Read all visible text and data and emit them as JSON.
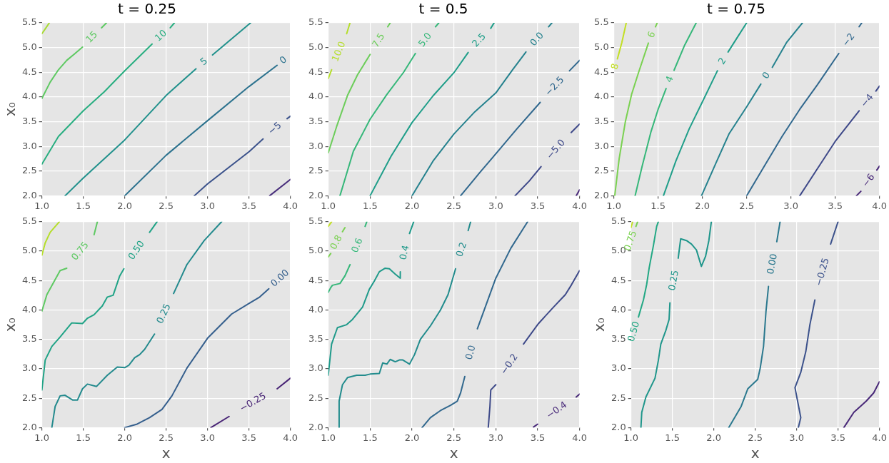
{
  "chart_data": [
    {
      "type": "line",
      "title": "t = 0.25",
      "ylabel": "x₀",
      "grid": true,
      "marker": "none",
      "xlim": [
        1,
        4
      ],
      "ylim": [
        2,
        5.5
      ],
      "xticks": [
        {
          "value": 1,
          "label": "1.0"
        },
        {
          "value": 1.5,
          "label": "1.5"
        },
        {
          "value": 2,
          "label": "2.0"
        },
        {
          "value": 2.5,
          "label": "2.5"
        },
        {
          "value": 3,
          "label": "3.0"
        },
        {
          "value": 3.5,
          "label": "3.5"
        },
        {
          "value": 4,
          "label": "4.0"
        }
      ],
      "yticks": [
        {
          "value": 2,
          "label": "2.0"
        },
        {
          "value": 2.5,
          "label": "2.5"
        },
        {
          "value": 3,
          "label": "3.0"
        },
        {
          "value": 3.5,
          "label": "3.5"
        },
        {
          "value": 4,
          "label": "4.0"
        },
        {
          "value": 4.5,
          "label": "4.5"
        },
        {
          "value": 5,
          "label": "5.0"
        },
        {
          "value": 5.5,
          "label": "5.5"
        }
      ],
      "series": [
        {
          "color": "#a8db34",
          "x": [
            1.0,
            1.05,
            1.09
          ],
          "values": [
            5.28,
            5.4,
            5.5
          ]
        },
        {
          "name": "15",
          "color": "#5ec962",
          "x": [
            1.0,
            1.1,
            1.2,
            1.3,
            1.4,
            1.49,
            1.6,
            1.72,
            1.78
          ],
          "values": [
            3.97,
            4.3,
            4.55,
            4.74,
            4.88,
            5.01,
            null,
            5.4,
            5.5
          ]
        },
        {
          "name": "10",
          "color": "#28ae80",
          "x": [
            1.0,
            1.2,
            1.5,
            1.75,
            2.0,
            2.33,
            2.45,
            2.55,
            2.6
          ],
          "values": [
            2.64,
            3.2,
            3.72,
            4.1,
            4.53,
            5.07,
            null,
            5.4,
            5.5
          ]
        },
        {
          "name": "5",
          "color": "#21918c",
          "x": [
            1.28,
            1.5,
            2.0,
            2.5,
            2.86,
            2.96,
            3.06,
            3.52
          ],
          "values": [
            2.0,
            2.36,
            3.13,
            4.03,
            4.57,
            null,
            4.85,
            5.5
          ]
        },
        {
          "name": "0",
          "color": "#2c728e",
          "x": [
            2.0,
            2.5,
            3.0,
            3.5,
            3.84
          ],
          "values": [
            2.0,
            2.82,
            3.52,
            4.21,
            4.64
          ]
        },
        {
          "name": "−5",
          "color": "#3b528b",
          "x": [
            2.84,
            3.0,
            3.5,
            3.67,
            3.82,
            3.96,
            4.0
          ],
          "values": [
            2.0,
            2.24,
            2.89,
            3.15,
            null,
            3.56,
            3.61
          ]
        },
        {
          "color": "#472d7b",
          "x": [
            3.75,
            4.0
          ],
          "values": [
            2.0,
            2.33
          ]
        }
      ]
    },
    {
      "type": "line",
      "title": "t = 0.5",
      "grid": true,
      "marker": "none",
      "xlim": [
        1,
        4
      ],
      "ylim": [
        2,
        5.5
      ],
      "xticks": [
        {
          "value": 1,
          "label": "1.0"
        },
        {
          "value": 1.5,
          "label": "1.5"
        },
        {
          "value": 2,
          "label": "2.0"
        },
        {
          "value": 2.5,
          "label": "2.5"
        },
        {
          "value": 3,
          "label": "3.0"
        },
        {
          "value": 3.5,
          "label": "3.5"
        },
        {
          "value": 4,
          "label": "4.0"
        }
      ],
      "yticks": [
        {
          "value": 2,
          "label": "2.0"
        },
        {
          "value": 2.5,
          "label": "2.5"
        },
        {
          "value": 3,
          "label": "3.0"
        },
        {
          "value": 3.5,
          "label": "3.5"
        },
        {
          "value": 4,
          "label": "4.0"
        },
        {
          "value": 4.5,
          "label": "4.5"
        },
        {
          "value": 5,
          "label": "5.0"
        },
        {
          "value": 5.5,
          "label": "5.5"
        }
      ],
      "series": [
        {
          "name": "10.0",
          "color": "#b5de2b",
          "x": [
            1.0,
            1.04,
            1.12,
            1.22,
            1.26
          ],
          "values": [
            4.37,
            4.55,
            null,
            5.28,
            5.5
          ]
        },
        {
          "name": "7.5",
          "color": "#6ccd5a",
          "x": [
            1.0,
            1.1,
            1.23,
            1.35,
            1.5,
            1.6,
            1.71,
            1.74
          ],
          "values": [
            2.87,
            3.4,
            4.03,
            4.45,
            4.86,
            null,
            5.42,
            5.5
          ]
        },
        {
          "name": "5.0",
          "color": "#35b779",
          "x": [
            1.14,
            1.3,
            1.5,
            1.7,
            1.9,
            2.04,
            2.12,
            2.28,
            2.32
          ],
          "values": [
            2.0,
            2.9,
            3.55,
            4.05,
            4.5,
            4.88,
            null,
            5.42,
            5.5
          ]
        },
        {
          "name": "2.5",
          "color": "#1f9e89",
          "x": [
            1.5,
            1.75,
            2.0,
            2.25,
            2.5,
            2.67,
            2.8,
            2.94,
            2.98
          ],
          "values": [
            2.0,
            2.8,
            3.48,
            4.02,
            4.49,
            4.9,
            null,
            5.39,
            5.5
          ]
        },
        {
          "name": "0.0",
          "color": "#26828e",
          "x": [
            2.0,
            2.25,
            2.5,
            2.75,
            3.0,
            3.2,
            3.36,
            3.5,
            3.63,
            3.67
          ],
          "values": [
            2.0,
            2.7,
            3.25,
            3.7,
            4.08,
            4.55,
            4.91,
            null,
            5.42,
            5.5
          ]
        },
        {
          "name": "−2.5",
          "color": "#31688e",
          "x": [
            2.58,
            2.8,
            3.0,
            3.25,
            3.53,
            3.72,
            3.88,
            4.0
          ],
          "values": [
            2.0,
            2.45,
            2.85,
            3.35,
            3.89,
            null,
            4.53,
            4.74
          ]
        },
        {
          "name": "−5.0",
          "color": "#3e4989",
          "x": [
            3.23,
            3.4,
            3.54,
            3.72,
            3.9,
            4.0
          ],
          "values": [
            2.0,
            2.3,
            2.59,
            null,
            3.28,
            3.45
          ]
        },
        {
          "color": "#482878",
          "x": [
            3.96,
            4.0
          ],
          "values": [
            2.0,
            2.12
          ]
        }
      ]
    },
    {
      "type": "line",
      "title": "t = 0.75",
      "grid": true,
      "marker": "none",
      "xlim": [
        1,
        4
      ],
      "ylim": [
        2,
        5.5
      ],
      "xticks": [
        {
          "value": 1,
          "label": "1.0"
        },
        {
          "value": 1.5,
          "label": "1.5"
        },
        {
          "value": 2,
          "label": "2.0"
        },
        {
          "value": 2.5,
          "label": "2.5"
        },
        {
          "value": 3,
          "label": "3.0"
        },
        {
          "value": 3.5,
          "label": "3.5"
        },
        {
          "value": 4,
          "label": "4.0"
        }
      ],
      "yticks": [
        {
          "value": 2,
          "label": "2.0"
        },
        {
          "value": 2.5,
          "label": "2.5"
        },
        {
          "value": 3,
          "label": "3.0"
        },
        {
          "value": 3.5,
          "label": "3.5"
        },
        {
          "value": 4,
          "label": "4.0"
        },
        {
          "value": 4.5,
          "label": "4.5"
        },
        {
          "value": 5,
          "label": "5.0"
        },
        {
          "value": 5.5,
          "label": "5.5"
        }
      ],
      "series": [
        {
          "name": "8",
          "color": "#c2df23",
          "x": [
            1.14,
            1.09,
            1.04
          ],
          "values": [
            5.5,
            5.1,
            4.77
          ]
        },
        {
          "name": "6",
          "color": "#7ad151",
          "x": [
            1.01,
            1.06,
            1.13,
            1.2,
            1.28,
            1.39,
            1.43,
            1.47,
            1.49
          ],
          "values": [
            2.0,
            2.75,
            3.5,
            4.05,
            4.5,
            5.09,
            null,
            5.42,
            5.5
          ]
        },
        {
          "name": "4",
          "color": "#35b779",
          "x": [
            1.24,
            1.32,
            1.42,
            1.5,
            1.59,
            1.63,
            1.68,
            1.8,
            1.93
          ],
          "values": [
            2.0,
            2.6,
            3.3,
            3.75,
            4.17,
            null,
            4.54,
            5.05,
            5.5
          ]
        },
        {
          "name": "2",
          "color": "#1f9e89",
          "x": [
            1.56,
            1.7,
            1.85,
            2.0,
            2.17,
            2.22,
            2.29,
            2.4,
            2.5
          ],
          "values": [
            2.0,
            2.7,
            3.35,
            3.9,
            4.53,
            null,
            4.91,
            5.22,
            5.5
          ]
        },
        {
          "name": "0",
          "color": "#26828e",
          "x": [
            1.99,
            2.15,
            2.3,
            2.5,
            2.66,
            2.72,
            2.79,
            2.95,
            3.13
          ],
          "values": [
            2.0,
            2.65,
            3.25,
            3.8,
            4.26,
            null,
            4.6,
            5.1,
            5.5
          ]
        },
        {
          "name": "−2",
          "color": "#31688e",
          "x": [
            2.5,
            2.7,
            2.9,
            3.1,
            3.3,
            3.54,
            3.66,
            3.77,
            3.8
          ],
          "values": [
            2.0,
            2.6,
            3.2,
            3.75,
            4.25,
            4.88,
            null,
            5.42,
            5.5
          ]
        },
        {
          "name": "−4",
          "color": "#3e4989",
          "x": [
            3.1,
            3.3,
            3.5,
            3.77,
            3.88,
            3.96,
            4.0
          ],
          "values": [
            2.0,
            2.55,
            3.1,
            3.72,
            null,
            4.12,
            4.22
          ]
        },
        {
          "name": "−6",
          "color": "#482878",
          "x": [
            3.74,
            3.79,
            3.89,
            3.97,
            4.0
          ],
          "values": [
            2.0,
            2.09,
            null,
            2.52,
            2.6
          ]
        }
      ]
    },
    {
      "type": "line",
      "xlabel": "x",
      "ylabel": "x₀",
      "grid": true,
      "marker": "none",
      "xlim": [
        1,
        4
      ],
      "ylim": [
        2,
        5.5
      ],
      "xticks": [
        {
          "value": 1,
          "label": "1.0"
        },
        {
          "value": 1.5,
          "label": "1.5"
        },
        {
          "value": 2,
          "label": "2.0"
        },
        {
          "value": 2.5,
          "label": "2.5"
        },
        {
          "value": 3,
          "label": "3.0"
        },
        {
          "value": 3.5,
          "label": "3.5"
        },
        {
          "value": 4,
          "label": "4.0"
        }
      ],
      "yticks": [
        {
          "value": 2,
          "label": "2.0"
        },
        {
          "value": 2.5,
          "label": "2.5"
        },
        {
          "value": 3,
          "label": "3.0"
        },
        {
          "value": 3.5,
          "label": "3.5"
        },
        {
          "value": 4,
          "label": "4.0"
        },
        {
          "value": 4.5,
          "label": "4.5"
        },
        {
          "value": 5,
          "label": "5.0"
        },
        {
          "value": 5.5,
          "label": "5.5"
        }
      ],
      "series": [
        {
          "color": "#b5de2b",
          "x": [
            1.0,
            1.04,
            1.1,
            1.21
          ],
          "values": [
            4.93,
            5.14,
            5.32,
            5.5
          ]
        },
        {
          "name": "0.75",
          "color": "#5ec962",
          "x": [
            1.0,
            1.06,
            1.15,
            1.22,
            1.3,
            1.45,
            1.63,
            1.67
          ],
          "values": [
            3.98,
            4.26,
            4.49,
            4.67,
            4.71,
            null,
            5.28,
            5.5
          ]
        },
        {
          "name": "0.50",
          "color": "#20a386",
          "x": [
            1.0,
            1.04,
            1.12,
            1.22,
            1.36,
            1.49,
            1.55,
            1.63,
            1.73,
            1.79,
            1.86,
            1.94,
            1.99,
            2.14,
            2.3,
            2.39
          ],
          "values": [
            2.64,
            3.15,
            3.38,
            3.54,
            3.78,
            3.77,
            3.86,
            3.92,
            4.07,
            4.22,
            4.25,
            4.58,
            4.7,
            null,
            5.32,
            5.5
          ]
        },
        {
          "name": "0.25",
          "color": "#238a8d",
          "x": [
            1.12,
            1.16,
            1.22,
            1.28,
            1.37,
            1.43,
            1.49,
            1.55,
            1.66,
            1.79,
            1.91,
            2.0,
            2.05,
            2.12,
            2.18,
            2.24,
            2.36,
            2.46,
            2.59,
            2.75,
            2.96,
            3.17
          ],
          "values": [
            2.0,
            2.36,
            2.54,
            2.55,
            2.47,
            2.47,
            2.66,
            2.74,
            2.7,
            2.89,
            3.03,
            3.02,
            3.06,
            3.19,
            3.24,
            3.33,
            3.59,
            null,
            4.28,
            4.77,
            5.18,
            5.5
          ]
        },
        {
          "name": "0.00",
          "color": "#355f8d",
          "x": [
            2.0,
            2.15,
            2.3,
            2.45,
            2.57,
            2.75,
            3.0,
            3.29,
            3.5,
            3.63,
            3.74
          ],
          "values": [
            2.0,
            2.06,
            2.17,
            2.31,
            2.54,
            3.01,
            3.52,
            3.93,
            4.11,
            4.22,
            4.36
          ]
        },
        {
          "name": "−0.25",
          "color": "#482475",
          "x": [
            3.04,
            3.26,
            3.59,
            3.84,
            4.0
          ],
          "values": [
            2.0,
            2.19,
            null,
            2.66,
            2.84
          ]
        }
      ]
    },
    {
      "type": "line",
      "xlabel": "x",
      "grid": true,
      "marker": "none",
      "xlim": [
        1,
        4
      ],
      "ylim": [
        2,
        5.5
      ],
      "xticks": [
        {
          "value": 1,
          "label": "1.0"
        },
        {
          "value": 1.5,
          "label": "1.5"
        },
        {
          "value": 2,
          "label": "2.0"
        },
        {
          "value": 2.5,
          "label": "2.5"
        },
        {
          "value": 3,
          "label": "3.0"
        },
        {
          "value": 3.5,
          "label": "3.5"
        },
        {
          "value": 4,
          "label": "4.0"
        }
      ],
      "yticks": [
        {
          "value": 2,
          "label": "2.0"
        },
        {
          "value": 2.5,
          "label": "2.5"
        },
        {
          "value": 3,
          "label": "3.0"
        },
        {
          "value": 3.5,
          "label": "3.5"
        },
        {
          "value": 4,
          "label": "4.0"
        },
        {
          "value": 4.5,
          "label": "4.5"
        },
        {
          "value": 5,
          "label": "5.0"
        },
        {
          "value": 5.5,
          "label": "5.5"
        }
      ],
      "series": [
        {
          "color": "#c2df23",
          "x": [
            1.0,
            1.04
          ],
          "values": [
            5.42,
            5.5
          ]
        },
        {
          "name": "0.8",
          "color": "#7ad151",
          "x": [
            1.0,
            1.03,
            1.1,
            1.17,
            1.2
          ],
          "values": [
            4.9,
            4.96,
            null,
            5.33,
            5.4
          ]
        },
        {
          "name": "0.6",
          "color": "#35b779",
          "x": [
            1.0,
            1.03,
            1.05,
            1.14,
            1.2,
            1.26,
            1.35,
            1.44,
            1.46
          ],
          "values": [
            4.3,
            4.38,
            4.42,
            4.45,
            4.58,
            4.77,
            null,
            5.42,
            5.5
          ]
        },
        {
          "name": "0.4",
          "color": "#1f9a8a",
          "x": [
            1.0,
            1.04,
            1.11,
            1.22,
            1.29,
            1.41,
            1.49,
            1.55,
            1.61,
            1.68,
            1.73,
            1.8,
            1.86,
            1.86,
            1.9,
            1.97,
            2.02
          ],
          "values": [
            2.89,
            3.42,
            3.7,
            3.75,
            3.84,
            4.05,
            4.35,
            4.49,
            4.65,
            4.71,
            4.7,
            4.61,
            4.54,
            4.65,
            null,
            5.3,
            5.5
          ]
        },
        {
          "name": "0.2",
          "color": "#228c8d",
          "x": [
            1.13,
            1.13,
            1.17,
            1.23,
            1.34,
            1.44,
            1.5,
            1.61,
            1.65,
            1.7,
            1.74,
            1.8,
            1.85,
            1.89,
            1.97,
            2.03,
            2.1,
            2.22,
            2.34,
            2.43,
            2.52,
            2.6,
            2.67,
            2.7
          ],
          "values": [
            2.0,
            2.45,
            2.73,
            2.85,
            2.89,
            2.89,
            2.91,
            2.92,
            3.1,
            3.08,
            3.16,
            3.12,
            3.15,
            3.15,
            3.08,
            3.24,
            3.5,
            3.73,
            4.0,
            4.26,
            4.7,
            null,
            5.35,
            5.5
          ]
        },
        {
          "name": "0.0",
          "color": "#31688e",
          "x": [
            2.12,
            2.22,
            2.34,
            2.46,
            2.54,
            2.58,
            2.63,
            2.7,
            2.78,
            2.88,
            3.0,
            3.18,
            3.38
          ],
          "values": [
            2.0,
            2.17,
            2.29,
            2.38,
            2.45,
            2.59,
            2.87,
            null,
            3.68,
            4.07,
            4.54,
            5.05,
            5.5
          ]
        },
        {
          "name": "−0.2",
          "color": "#3e4a89",
          "x": [
            2.91,
            2.93,
            2.94,
            3.0,
            3.18,
            3.33,
            3.51,
            3.69,
            3.83,
            3.9,
            4.0
          ],
          "values": [
            2.0,
            2.36,
            2.64,
            2.73,
            null,
            3.42,
            3.77,
            4.05,
            4.26,
            4.42,
            4.67
          ]
        },
        {
          "name": "−0.4",
          "color": "#482979",
          "x": [
            3.45,
            3.5,
            3.74,
            3.96,
            4.0
          ],
          "values": [
            2.01,
            2.06,
            null,
            2.52,
            2.57
          ]
        }
      ]
    },
    {
      "type": "line",
      "xlabel": "x",
      "ylabel": "x₀",
      "grid": true,
      "marker": "none",
      "xlim": [
        1,
        4
      ],
      "ylim": [
        2,
        5.5
      ],
      "xticks": [
        {
          "value": 1,
          "label": "1.0"
        },
        {
          "value": 1.5,
          "label": "1.5"
        },
        {
          "value": 2,
          "label": "2.0"
        },
        {
          "value": 2.5,
          "label": "2.5"
        },
        {
          "value": 3,
          "label": "3.0"
        },
        {
          "value": 3.5,
          "label": "3.5"
        },
        {
          "value": 4,
          "label": "4.0"
        }
      ],
      "yticks": [
        {
          "value": 2,
          "label": "2.0"
        },
        {
          "value": 2.5,
          "label": "2.5"
        },
        {
          "value": 3,
          "label": "3.0"
        },
        {
          "value": 3.5,
          "label": "3.5"
        },
        {
          "value": 4,
          "label": "4.0"
        },
        {
          "value": 4.5,
          "label": "4.5"
        },
        {
          "value": 5,
          "label": "5.0"
        },
        {
          "value": 5.5,
          "label": "5.5"
        }
      ],
      "series": [
        {
          "color": "#c2df23",
          "x": [
            1.0,
            1.02
          ],
          "values": [
            5.4,
            5.5
          ]
        },
        {
          "name": "0.75",
          "color": "#7ad151",
          "x": [
            1.08,
            1.06
          ],
          "values": [
            5.5,
            5.42
          ]
        },
        {
          "name": "0.50",
          "color": "#22a884",
          "x": [
            1.33,
            1.31,
            1.27,
            1.22,
            1.19,
            1.15,
            1.09
          ],
          "values": [
            5.5,
            5.42,
            5.09,
            4.72,
            4.44,
            4.17,
            3.88
          ]
        },
        {
          "name": "0.25",
          "color": "#1f968b",
          "x": [
            1.12,
            1.13,
            1.18,
            1.29,
            1.33,
            1.36,
            1.42,
            1.46,
            1.47,
            1.52,
            1.57,
            1.6,
            1.67,
            1.73,
            1.79,
            1.85,
            1.9,
            1.94,
            1.97
          ],
          "values": [
            2.0,
            2.26,
            2.52,
            2.84,
            3.14,
            3.42,
            3.65,
            3.84,
            4.12,
            null,
            4.88,
            5.21,
            5.18,
            5.12,
            5.02,
            4.74,
            4.91,
            5.18,
            5.5
          ]
        },
        {
          "name": "0.00",
          "color": "#2a788e",
          "x": [
            2.18,
            2.33,
            2.41,
            2.53,
            2.56,
            2.6,
            2.63,
            2.66,
            2.71,
            2.76,
            2.8
          ],
          "values": [
            2.0,
            2.36,
            2.66,
            2.82,
            3.01,
            3.38,
            3.98,
            4.4,
            null,
            5.16,
            5.5
          ]
        },
        {
          "name": "−0.25",
          "color": "#3b518b",
          "x": [
            3.02,
            3.05,
            2.98,
            3.05,
            3.11,
            3.16,
            3.22,
            3.31,
            3.41,
            3.5
          ],
          "values": [
            2.0,
            2.17,
            2.68,
            2.94,
            3.29,
            3.75,
            4.17,
            null,
            5.12,
            5.5
          ]
        },
        {
          "color": "#482878",
          "x": [
            3.57,
            3.69,
            3.84,
            3.93,
            4.0
          ],
          "values": [
            2.0,
            2.26,
            2.45,
            2.59,
            2.78
          ]
        }
      ]
    }
  ]
}
